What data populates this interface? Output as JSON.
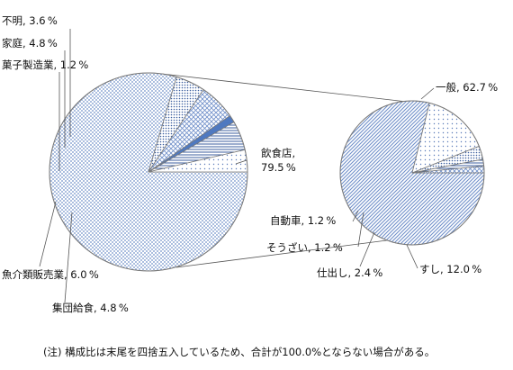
{
  "chart_data": [
    {
      "type": "pie",
      "slices": [
        {
          "label_lines": [
            "飲食店,",
            "79.5 %"
          ],
          "value": 79.5,
          "pattern": "dots"
        },
        {
          "label_lines": [
            "集団給食, 4.8 %"
          ],
          "value": 4.8,
          "pattern": "fine-dots"
        },
        {
          "label_lines": [
            "魚介類販売業, 6.0 %"
          ],
          "value": 6.0,
          "pattern": "cross"
        },
        {
          "label_lines": [
            "菓子製造業, 1.2 %"
          ],
          "value": 1.2,
          "pattern": "solid-blue"
        },
        {
          "label_lines": [
            "家庭, 4.8 %"
          ],
          "value": 4.8,
          "pattern": "hlines"
        },
        {
          "label_lines": [
            "不明, 3.6 %"
          ],
          "value": 3.6,
          "pattern": "sparse-dots"
        }
      ]
    },
    {
      "type": "pie",
      "slices": [
        {
          "label_lines": [
            "一般, 62.7 %"
          ],
          "value": 62.7,
          "pattern": "diag"
        },
        {
          "label_lines": [
            "すし, 12.0 %"
          ],
          "value": 12.0,
          "pattern": "sparse-dots"
        },
        {
          "label_lines": [
            "仕出し, 2.4 %"
          ],
          "value": 2.4,
          "pattern": "fine-dots"
        },
        {
          "label_lines": [
            "そうざい, 1.2 %"
          ],
          "value": 1.2,
          "pattern": "hlines"
        },
        {
          "label_lines": [
            "自動車, 1.2 %"
          ],
          "value": 1.2,
          "pattern": "cross"
        }
      ]
    }
  ],
  "note": "(注) 構成比は末尾を四捨五入しているため、合計が100.0%とならない場合がある。",
  "colors": {
    "blue": "#6f8fc9",
    "line": "#555555"
  }
}
